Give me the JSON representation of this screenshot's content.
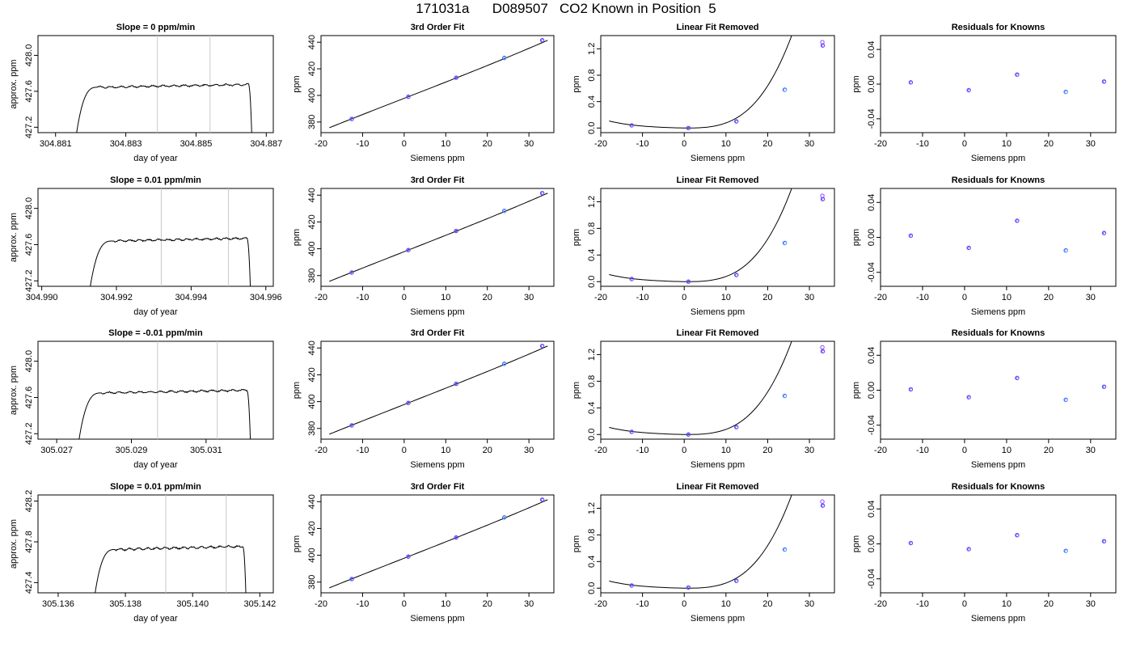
{
  "page_title": "171031a      D089507   CO2 Known in Position  5",
  "colors": {
    "curve": "#000000",
    "axis": "#000000",
    "window_line": "#c8c8c8",
    "point_outer": "#1e5cff",
    "point_inner": "#a040ff",
    "point_light": "#7fb2ff"
  },
  "chart_data": [
    {
      "row": 0,
      "panels": [
        {
          "type": "line",
          "kind": "trace",
          "title": "Slope =  0  ppm/min",
          "xlabel": "day of year",
          "ylabel": "approx. ppm",
          "xlim": [
            304.8805,
            304.8872
          ],
          "ylim": [
            427.14,
            428.22
          ],
          "xticks": [
            "304.881",
            "304.883",
            "304.885",
            "304.887"
          ],
          "xtick_values": [
            304.881,
            304.883,
            304.885,
            304.887
          ],
          "yticks": [
            "427.2",
            "427.6",
            "428.0"
          ],
          "ytick_values": [
            427.2,
            427.6,
            428.0
          ],
          "trace": {
            "start": 304.8816,
            "rise_end": 304.8822,
            "end": 304.8866,
            "drop_start": 304.8865,
            "level": 427.665,
            "base": 427.14
          },
          "window_lines": [
            304.8839,
            304.8854
          ]
        },
        {
          "type": "scatter",
          "kind": "fit",
          "title": "3rd Order Fit",
          "xlabel": "Siemens ppm",
          "ylabel": "ppm",
          "xlim": [
            -20,
            36
          ],
          "ylim": [
            372,
            445
          ],
          "xticks": [
            "-20",
            "-10",
            "0",
            "10",
            "20",
            "30"
          ],
          "xtick_values": [
            -20,
            -10,
            0,
            10,
            20,
            30
          ],
          "yticks": [
            "380",
            "400",
            "420",
            "440"
          ],
          "ytick_values": [
            380,
            400,
            420,
            440
          ],
          "x": [
            -12.6,
            1.0,
            12.5,
            24.1,
            33.2
          ],
          "y": [
            382.3,
            399.0,
            413.3,
            428.2,
            441.5
          ],
          "fit_range": [
            -18,
            34.5
          ],
          "fit_coef": [
            397.82,
            1.217,
            0.0,
            4e-05
          ]
        },
        {
          "type": "scatter",
          "kind": "residual_curve",
          "title": "Linear Fit Removed",
          "xlabel": "Siemens ppm",
          "ylabel": "ppm",
          "xlim": [
            -20,
            36
          ],
          "ylim": [
            -0.07,
            1.4
          ],
          "xticks": [
            "-20",
            "-10",
            "0",
            "10",
            "20",
            "30"
          ],
          "xtick_values": [
            -20,
            -10,
            0,
            10,
            20,
            30
          ],
          "yticks": [
            "0.0",
            "0.4",
            "0.8",
            "1.2"
          ],
          "ytick_values": [
            0.0,
            0.4,
            0.8,
            1.2
          ],
          "x": [
            -12.6,
            1.0,
            12.5,
            24.1,
            33.2,
            33.1
          ],
          "y": [
            0.04,
            0.0,
            0.1,
            0.58,
            1.25,
            1.3
          ],
          "curve": {
            "range": [
              -18,
              34.3
            ],
            "x_min": 1.0,
            "amp": 9.15e-05,
            "dip": -0.012
          }
        },
        {
          "type": "scatter",
          "kind": "residual",
          "title": "Residuals for Knowns",
          "xlabel": "Siemens ppm",
          "ylabel": "ppm",
          "xlim": [
            -20,
            36
          ],
          "ylim": [
            -0.056,
            0.056
          ],
          "xticks": [
            "-20",
            "-10",
            "0",
            "10",
            "20",
            "30"
          ],
          "xtick_values": [
            -20,
            -10,
            0,
            10,
            20,
            30
          ],
          "yticks": [
            "-0.04",
            "0.00",
            "0.04"
          ],
          "ytick_values": [
            -0.04,
            0.0,
            0.04
          ],
          "x": [
            -12.8,
            1.0,
            12.5,
            24.1,
            33.2
          ],
          "y": [
            0.002,
            -0.007,
            0.011,
            -0.009,
            0.003
          ]
        }
      ]
    },
    {
      "row": 1,
      "panels": [
        {
          "type": "line",
          "kind": "trace",
          "title": "Slope =  0.01  ppm/min",
          "xlabel": "day of year",
          "ylabel": "approx. ppm",
          "xlim": [
            304.9899,
            304.9962
          ],
          "ylim": [
            427.14,
            428.22
          ],
          "xticks": [
            "304.990",
            "304.992",
            "304.994",
            "304.996"
          ],
          "xtick_values": [
            304.99,
            304.992,
            304.994,
            304.996
          ],
          "yticks": [
            "427.2",
            "427.6",
            "428.0"
          ],
          "ytick_values": [
            427.2,
            427.6,
            428.0
          ],
          "trace": {
            "start": 304.9913,
            "rise_end": 304.9919,
            "end": 304.9956,
            "drop_start": 304.9955,
            "level": 427.66,
            "base": 427.14
          },
          "window_lines": [
            304.9932,
            304.995
          ]
        },
        {
          "type": "scatter",
          "kind": "fit",
          "title": "3rd Order Fit",
          "xlabel": "Siemens ppm",
          "ylabel": "ppm",
          "xlim": [
            -20,
            36
          ],
          "ylim": [
            372,
            445
          ],
          "xticks": [
            "-20",
            "-10",
            "0",
            "10",
            "20",
            "30"
          ],
          "xtick_values": [
            -20,
            -10,
            0,
            10,
            20,
            30
          ],
          "yticks": [
            "380",
            "400",
            "420",
            "440"
          ],
          "ytick_values": [
            380,
            400,
            420,
            440
          ],
          "x": [
            -12.6,
            1.0,
            12.5,
            24.1,
            33.2
          ],
          "y": [
            382.3,
            399.0,
            413.3,
            428.2,
            441.5
          ],
          "fit_range": [
            -18,
            34.5
          ],
          "fit_coef": [
            397.82,
            1.217,
            0.0,
            4e-05
          ]
        },
        {
          "type": "scatter",
          "kind": "residual_curve",
          "title": "Linear Fit Removed",
          "xlabel": "Siemens ppm",
          "ylabel": "ppm",
          "xlim": [
            -20,
            36
          ],
          "ylim": [
            -0.07,
            1.4
          ],
          "xticks": [
            "-20",
            "-10",
            "0",
            "10",
            "20",
            "30"
          ],
          "xtick_values": [
            -20,
            -10,
            0,
            10,
            20,
            30
          ],
          "yticks": [
            "0.0",
            "0.4",
            "0.8",
            "1.2"
          ],
          "ytick_values": [
            0.0,
            0.4,
            0.8,
            1.2
          ],
          "x": [
            -12.6,
            1.0,
            12.5,
            24.1,
            33.2,
            33.1
          ],
          "y": [
            0.04,
            0.0,
            0.1,
            0.58,
            1.24,
            1.29
          ],
          "curve": {
            "range": [
              -18,
              34.3
            ],
            "x_min": 1.0,
            "amp": 9.15e-05,
            "dip": -0.012
          }
        },
        {
          "type": "scatter",
          "kind": "residual",
          "title": "Residuals for Knowns",
          "xlabel": "Siemens ppm",
          "ylabel": "ppm",
          "xlim": [
            -20,
            36
          ],
          "ylim": [
            -0.056,
            0.056
          ],
          "xticks": [
            "-20",
            "-10",
            "0",
            "10",
            "20",
            "30"
          ],
          "xtick_values": [
            -20,
            -10,
            0,
            10,
            20,
            30
          ],
          "yticks": [
            "-0.04",
            "0.00",
            "0.04"
          ],
          "ytick_values": [
            -0.04,
            0.0,
            0.04
          ],
          "x": [
            -12.8,
            1.0,
            12.5,
            24.1,
            33.2
          ],
          "y": [
            0.002,
            -0.012,
            0.019,
            -0.015,
            0.005
          ]
        }
      ]
    },
    {
      "row": 2,
      "panels": [
        {
          "type": "line",
          "kind": "trace",
          "title": "Slope =  -0.01  ppm/min",
          "xlabel": "day of year",
          "ylabel": "approx. ppm",
          "xlim": [
            305.0265,
            305.0328
          ],
          "ylim": [
            427.14,
            428.22
          ],
          "xticks": [
            "305.027",
            "305.029",
            "305.031"
          ],
          "xtick_values": [
            305.027,
            305.029,
            305.031
          ],
          "yticks": [
            "427.2",
            "427.6",
            "428.0"
          ],
          "ytick_values": [
            427.2,
            427.6,
            428.0
          ],
          "trace": {
            "start": 305.0276,
            "rise_end": 305.0282,
            "end": 305.0322,
            "drop_start": 305.0321,
            "level": 427.67,
            "base": 427.14
          },
          "window_lines": [
            305.0297,
            305.0313
          ]
        },
        {
          "type": "scatter",
          "kind": "fit",
          "title": "3rd Order Fit",
          "xlabel": "Siemens ppm",
          "ylabel": "ppm",
          "xlim": [
            -20,
            36
          ],
          "ylim": [
            372,
            445
          ],
          "xticks": [
            "-20",
            "-10",
            "0",
            "10",
            "20",
            "30"
          ],
          "xtick_values": [
            -20,
            -10,
            0,
            10,
            20,
            30
          ],
          "yticks": [
            "380",
            "400",
            "420",
            "440"
          ],
          "ytick_values": [
            380,
            400,
            420,
            440
          ],
          "x": [
            -12.6,
            1.0,
            12.5,
            24.1,
            33.2
          ],
          "y": [
            382.3,
            399.0,
            413.3,
            428.2,
            441.5
          ],
          "fit_range": [
            -18,
            34.5
          ],
          "fit_coef": [
            397.82,
            1.217,
            0.0,
            4e-05
          ]
        },
        {
          "type": "scatter",
          "kind": "residual_curve",
          "title": "Linear Fit Removed",
          "xlabel": "Siemens ppm",
          "ylabel": "ppm",
          "xlim": [
            -20,
            36
          ],
          "ylim": [
            -0.07,
            1.4
          ],
          "xticks": [
            "-20",
            "-10",
            "0",
            "10",
            "20",
            "30"
          ],
          "xtick_values": [
            -20,
            -10,
            0,
            10,
            20,
            30
          ],
          "yticks": [
            "0.0",
            "0.4",
            "0.8",
            "1.2"
          ],
          "ytick_values": [
            0.0,
            0.4,
            0.8,
            1.2
          ],
          "x": [
            -12.6,
            1.0,
            12.5,
            24.1,
            33.2,
            33.1
          ],
          "y": [
            0.04,
            0.0,
            0.11,
            0.58,
            1.25,
            1.31
          ],
          "curve": {
            "range": [
              -18,
              34.3
            ],
            "x_min": 1.0,
            "amp": 9.15e-05,
            "dip": -0.012
          }
        },
        {
          "type": "scatter",
          "kind": "residual",
          "title": "Residuals for Knowns",
          "xlabel": "Siemens ppm",
          "ylabel": "ppm",
          "xlim": [
            -20,
            36
          ],
          "ylim": [
            -0.056,
            0.056
          ],
          "xticks": [
            "-20",
            "-10",
            "0",
            "10",
            "20",
            "30"
          ],
          "xtick_values": [
            -20,
            -10,
            0,
            10,
            20,
            30
          ],
          "yticks": [
            "-0.04",
            "0.00",
            "0.04"
          ],
          "ytick_values": [
            -0.04,
            0.0,
            0.04
          ],
          "x": [
            -12.8,
            1.0,
            12.5,
            24.1,
            33.2
          ],
          "y": [
            0.001,
            -0.008,
            0.014,
            -0.011,
            0.004
          ]
        }
      ]
    },
    {
      "row": 3,
      "panels": [
        {
          "type": "line",
          "kind": "trace",
          "title": "Slope =  0.01  ppm/min",
          "xlabel": "day of year",
          "ylabel": "approx. ppm",
          "xlim": [
            305.1354,
            305.1424
          ],
          "ylim": [
            427.3,
            428.26
          ],
          "xticks": [
            "305.136",
            "305.138",
            "305.140",
            "305.142"
          ],
          "xtick_values": [
            305.136,
            305.138,
            305.14,
            305.142
          ],
          "yticks": [
            "427.4",
            "427.8",
            "428.2"
          ],
          "ytick_values": [
            427.4,
            427.8,
            428.2
          ],
          "trace": {
            "start": 305.1371,
            "rise_end": 305.1377,
            "end": 305.1416,
            "drop_start": 305.1415,
            "level": 427.745,
            "base": 427.3
          },
          "window_lines": [
            305.1392,
            305.141
          ]
        },
        {
          "type": "scatter",
          "kind": "fit",
          "title": "3rd Order Fit",
          "xlabel": "Siemens ppm",
          "ylabel": "ppm",
          "xlim": [
            -20,
            36
          ],
          "ylim": [
            372,
            445
          ],
          "xticks": [
            "-20",
            "-10",
            "0",
            "10",
            "20",
            "30"
          ],
          "xtick_values": [
            -20,
            -10,
            0,
            10,
            20,
            30
          ],
          "yticks": [
            "380",
            "400",
            "420",
            "440"
          ],
          "ytick_values": [
            380,
            400,
            420,
            440
          ],
          "x": [
            -12.6,
            1.0,
            12.5,
            24.1,
            33.2
          ],
          "y": [
            382.3,
            399.0,
            413.3,
            428.2,
            441.5
          ],
          "fit_range": [
            -18,
            34.5
          ],
          "fit_coef": [
            397.82,
            1.217,
            0.0,
            4e-05
          ]
        },
        {
          "type": "scatter",
          "kind": "residual_curve",
          "title": "Linear Fit Removed",
          "xlabel": "Siemens ppm",
          "ylabel": "ppm",
          "xlim": [
            -20,
            36
          ],
          "ylim": [
            -0.07,
            1.4
          ],
          "xticks": [
            "-20",
            "-10",
            "0",
            "10",
            "20",
            "30"
          ],
          "xtick_values": [
            -20,
            -10,
            0,
            10,
            20,
            30
          ],
          "yticks": [
            "0.0",
            "0.4",
            "0.8",
            "1.2"
          ],
          "ytick_values": [
            0.0,
            0.4,
            0.8,
            1.2
          ],
          "x": [
            -12.6,
            1.0,
            12.5,
            24.1,
            33.2,
            33.1
          ],
          "y": [
            0.04,
            0.01,
            0.11,
            0.58,
            1.24,
            1.3
          ],
          "curve": {
            "range": [
              -18,
              34.3
            ],
            "x_min": 1.0,
            "amp": 9.15e-05,
            "dip": -0.012
          }
        },
        {
          "type": "scatter",
          "kind": "residual",
          "title": "Residuals for Knowns",
          "xlabel": "Siemens ppm",
          "ylabel": "ppm",
          "xlim": [
            -20,
            36
          ],
          "ylim": [
            -0.056,
            0.056
          ],
          "xticks": [
            "-20",
            "-10",
            "0",
            "10",
            "20",
            "30"
          ],
          "xtick_values": [
            -20,
            -10,
            0,
            10,
            20,
            30
          ],
          "yticks": [
            "-0.04",
            "0.00",
            "0.04"
          ],
          "ytick_values": [
            -0.04,
            0.0,
            0.04
          ],
          "x": [
            -12.8,
            1.0,
            12.5,
            24.1,
            33.2
          ],
          "y": [
            0.001,
            -0.006,
            0.01,
            -0.008,
            0.003
          ]
        }
      ]
    }
  ]
}
